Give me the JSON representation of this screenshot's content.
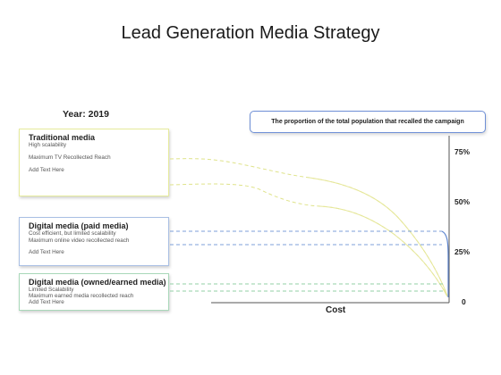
{
  "title": "Lead Generation Media Strategy",
  "year_label": "Year: 2019",
  "callout": "The proportion of the total population that recalled the campaign",
  "cards": [
    {
      "heading": "Traditional media",
      "lines": [
        "High scalability",
        "Maximum TV Recollected Reach",
        "Add Text Here"
      ],
      "color": "#dfe38a"
    },
    {
      "heading": "Digital media (paid media)",
      "lines": [
        "Cost efficient, but limited scalability",
        "Maximum online video recollected reach",
        "Add Text Here"
      ],
      "color": "#7c9fd9"
    },
    {
      "heading": "Digital media (owned/earned media)",
      "lines": [
        "Limited Scalability",
        "Maximum earned media recollected reach",
        "Add Text Here"
      ],
      "color": "#93d1a6"
    }
  ],
  "axis": {
    "y_ticks": [
      "75%",
      "50%",
      "25%",
      "0"
    ],
    "x_label": "Cost"
  }
}
